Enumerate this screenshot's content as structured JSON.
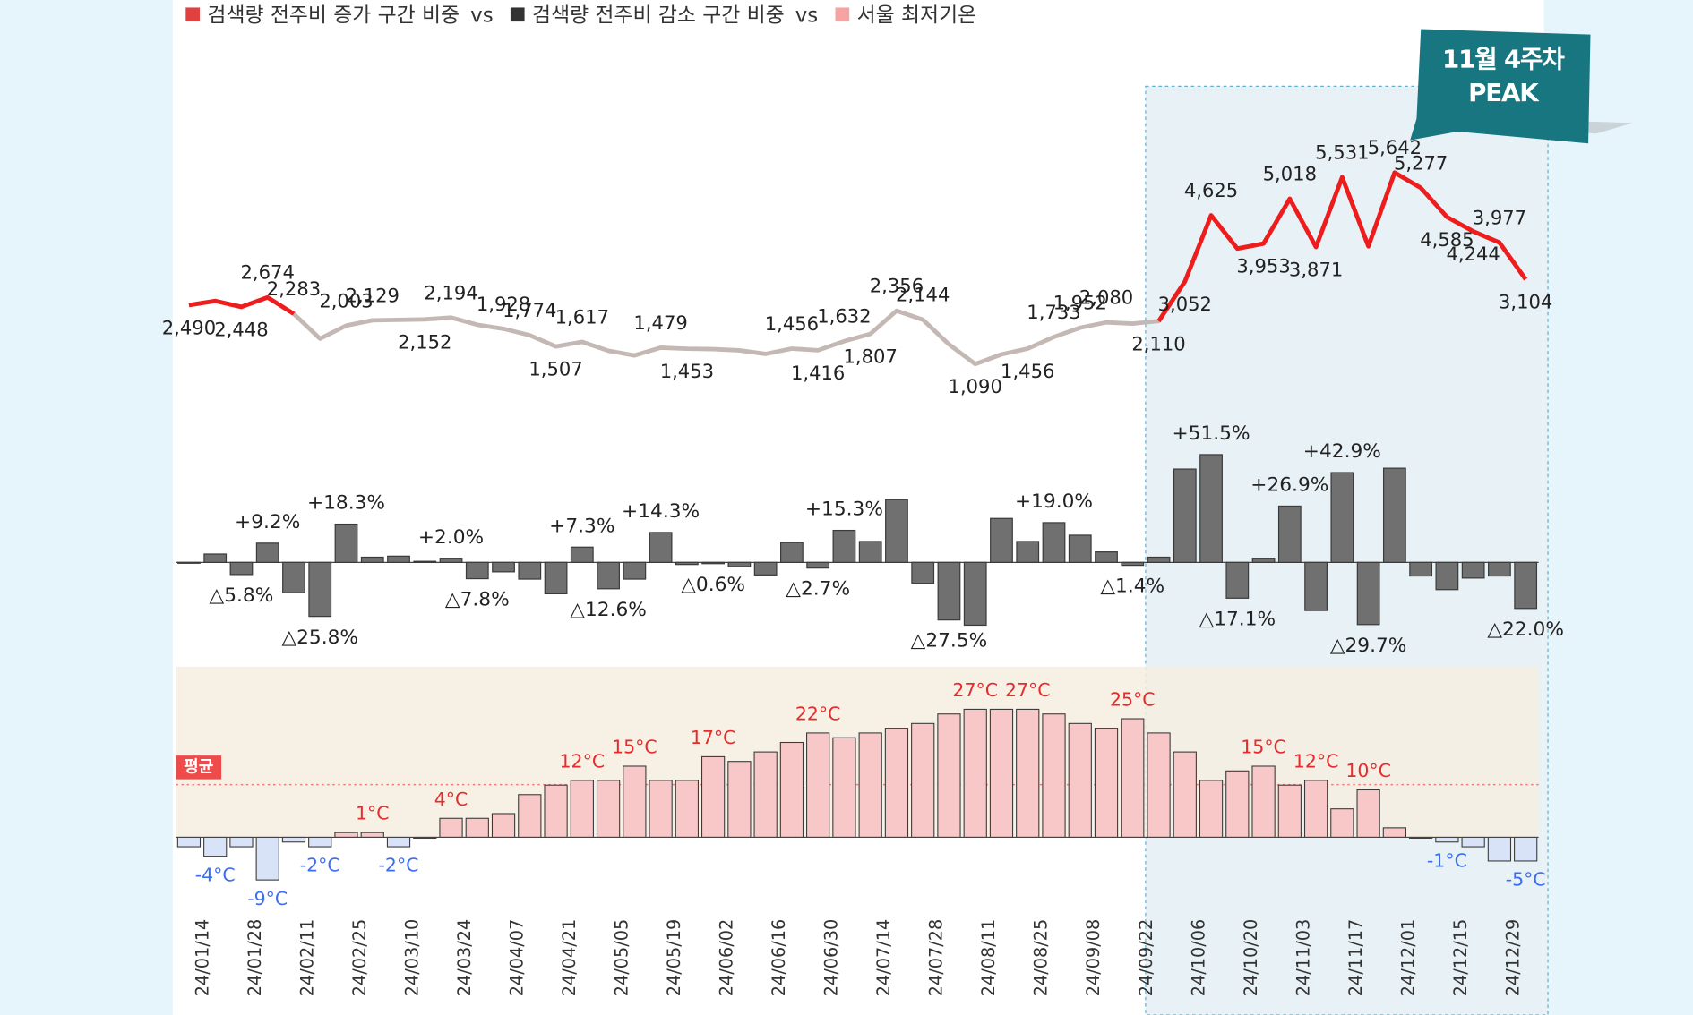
{
  "legend": {
    "items": [
      {
        "name": "검색량 전주비 증가 구간 비중",
        "color": "#e04040"
      },
      {
        "name": "검색량 전주비 감소 구간 비중",
        "color": "#333333"
      },
      {
        "name": "서울 최저기온",
        "color": "#f5a3a3"
      }
    ],
    "separator": "vs"
  },
  "callout": {
    "lines": [
      "11월 4주차",
      "PEAK"
    ],
    "color": "#17767f"
  },
  "chart_data": [
    {
      "type": "line",
      "categories": [
        null,
        "24/01/14",
        null,
        "24/01/28",
        null,
        "24/02/11",
        null,
        "24/02/25",
        null,
        "24/03/10",
        null,
        "24/03/24",
        null,
        "24/04/07",
        null,
        "24/04/21",
        null,
        "24/05/05",
        null,
        "24/05/19",
        null,
        "24/06/02",
        null,
        "24/06/16",
        null,
        "24/06/30",
        null,
        "24/07/14",
        null,
        "24/07/28",
        null,
        "24/08/11",
        null,
        "24/08/25",
        null,
        "24/09/08",
        null,
        "24/09/22",
        null,
        "24/10/06",
        null,
        "24/10/20",
        null,
        "24/11/03",
        null,
        "24/11/17",
        null,
        "24/12/01",
        null,
        "24/12/15",
        null,
        "24/12/29"
      ],
      "values": [
        2490,
        2590,
        2448,
        2674,
        2283,
        1693,
        2003,
        2129,
        2140,
        2152,
        2194,
        2023,
        1928,
        1774,
        1507,
        1617,
        1406,
        1294,
        1479,
        1453,
        1444,
        1415,
        1330,
        1456,
        1416,
        1632,
        1807,
        2356,
        2144,
        1555,
        1090,
        1319,
        1456,
        1733,
        1952,
        2080,
        2051,
        2110,
        3052,
        4625,
        3834,
        3953,
        5018,
        3871,
        5531,
        3888,
        5642,
        5277,
        4585,
        4244,
        3977,
        3104
      ],
      "value_labels": [
        "2,490",
        null,
        "2,448",
        "2,674",
        "2,283",
        null,
        "2,003",
        "2,129",
        null,
        "2,152",
        "2,194",
        null,
        "1,928",
        "1,774",
        "1,507",
        "1,617",
        null,
        null,
        "1,479",
        "1,453",
        null,
        null,
        null,
        "1,456",
        "1,416",
        "1,632",
        "1,807",
        "2,356",
        "2,144",
        null,
        "1,090",
        null,
        "1,456",
        "1,733",
        "1,952",
        "2,080",
        null,
        "2,110",
        "3,052",
        "4,625",
        null,
        "3,953",
        "5,018",
        "3,871",
        "5,531",
        null,
        "5,642",
        "5,277",
        "4,585",
        "4,244",
        "3,977",
        "3,104"
      ],
      "color": "#c4b8b4",
      "highlight_color": "#ee1c1c",
      "highlight_ranges": [
        [
          0,
          4
        ],
        [
          37,
          51
        ]
      ],
      "ylim": [
        0,
        6000
      ]
    },
    {
      "type": "bar",
      "values": [
        -0.3,
        4.0,
        -5.8,
        9.2,
        -14.5,
        -25.8,
        18.3,
        2.5,
        3.0,
        0.5,
        2.0,
        -7.8,
        -4.5,
        -8.0,
        -15.0,
        7.3,
        -12.6,
        -8.0,
        14.3,
        -1.0,
        -0.6,
        -2.0,
        -6.0,
        9.5,
        -2.7,
        15.3,
        10.0,
        30.0,
        -10.0,
        -27.5,
        -30.0,
        21.0,
        10.0,
        19.0,
        13.0,
        5.0,
        -1.4,
        2.5,
        44.6,
        51.5,
        -17.1,
        2.0,
        26.9,
        -23.0,
        42.9,
        -29.7,
        45.0,
        -6.5,
        -13.0,
        -7.5,
        -6.5,
        -22.0
      ],
      "value_labels": [
        null,
        null,
        "△5.8%",
        "+9.2%",
        null,
        "△25.8%",
        "+18.3%",
        null,
        null,
        null,
        "+2.0%",
        "△7.8%",
        null,
        null,
        null,
        "+7.3%",
        "△12.6%",
        null,
        "+14.3%",
        null,
        "△0.6%",
        null,
        null,
        null,
        "△2.7%",
        "+15.3%",
        null,
        null,
        null,
        "△27.5%",
        null,
        null,
        null,
        "+19.0%",
        null,
        null,
        "△1.4%",
        null,
        null,
        "+51.5%",
        "△17.1%",
        null,
        "+26.9%",
        null,
        "+42.9%",
        "△29.7%",
        null,
        null,
        null,
        null,
        null,
        "△22.0%"
      ],
      "color": "#707070",
      "ylim": [
        -40,
        60
      ]
    },
    {
      "type": "bar",
      "values": [
        -2,
        -4,
        -2,
        -9,
        -1,
        -2,
        1,
        1,
        -2,
        0,
        4,
        4,
        5,
        9,
        11,
        12,
        12,
        15,
        12,
        12,
        17,
        16,
        18,
        20,
        22,
        21,
        22,
        23,
        24,
        26,
        27,
        27,
        27,
        26,
        24,
        23,
        25,
        22,
        18,
        12,
        14,
        15,
        11,
        12,
        6,
        10,
        2,
        0,
        -1,
        -2,
        -5,
        -5
      ],
      "value_labels": [
        null,
        "-4°C",
        null,
        "-9°C",
        null,
        "-2°C",
        null,
        "1°C",
        "-2°C",
        null,
        "4°C",
        null,
        null,
        null,
        null,
        "12°C",
        null,
        "15°C",
        null,
        null,
        "17°C",
        null,
        null,
        null,
        "22°C",
        null,
        null,
        null,
        null,
        null,
        "27°C",
        null,
        "27°C",
        null,
        null,
        null,
        "25°C",
        null,
        null,
        null,
        null,
        "15°C",
        null,
        "12°C",
        null,
        "10°C",
        null,
        null,
        "-1°C",
        null,
        null,
        "-5°C"
      ],
      "color": "#f8c8c8",
      "negative_color": "#d8e3f7",
      "label_color": "#e52b2b",
      "negative_label_color": "#3b6ef0",
      "ylim": [
        -12,
        36
      ],
      "average": {
        "value": 11.1,
        "label": "평균"
      }
    }
  ]
}
